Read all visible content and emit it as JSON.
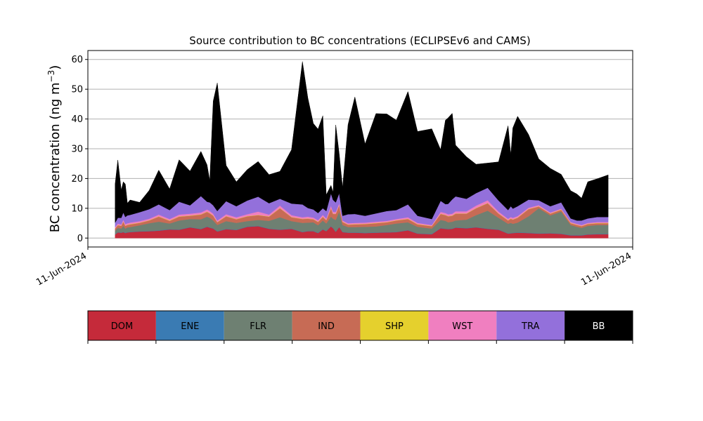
{
  "chart_data": {
    "type": "area",
    "title": "Source contribution to BC concentrations (ECLIPSEv6 and CAMS)",
    "ylabel_main": "BC concentration (ng m",
    "ylabel_sup": "−3",
    "ylabel_close": ")",
    "xlabel": "",
    "ylim": [
      -3,
      63
    ],
    "yticks": [
      0,
      10,
      20,
      30,
      40,
      50,
      60
    ],
    "x_tick_labels": [
      "11-Jun-2024",
      "11-Jun-2024"
    ],
    "xlim": [
      0,
      40
    ],
    "grid": "horizontal",
    "stacking": "cumulative",
    "x": [
      2,
      2.2,
      2.45,
      2.6,
      2.75,
      2.9,
      3.1,
      3.8,
      4.5,
      5.2,
      6,
      6.7,
      7.5,
      8.3,
      8.75,
      8.95,
      9.2,
      9.5,
      10.15,
      10.9,
      11.7,
      12.5,
      13.3,
      14.1,
      14.95,
      15.75,
      16.15,
      16.55,
      16.9,
      17.25,
      17.5,
      17.85,
      18.0,
      18.2,
      18.45,
      18.7,
      19.1,
      19.6,
      20.35,
      21.15,
      21.95,
      22.65,
      23.5,
      24.2,
      25.25,
      25.9,
      26.25,
      26.45,
      26.75,
      27.0,
      27.8,
      28.5,
      29.35,
      30.15,
      30.85,
      31.05,
      31.2,
      31.55,
      32.35,
      33.1,
      33.95,
      34.75,
      35.45,
      35.9,
      36.25,
      36.7,
      37.4,
      38.2
    ],
    "series": [
      {
        "name": "DOM",
        "color": "#c52a3a",
        "values": [
          1.2,
          1.9,
          1.8,
          2.0,
          1.7,
          1.9,
          2.0,
          2.2,
          2.3,
          2.5,
          2.9,
          2.8,
          3.6,
          3.0,
          3.8,
          3.5,
          3.2,
          2.2,
          3.0,
          2.7,
          3.8,
          4.0,
          3.1,
          2.8,
          3.1,
          2.0,
          2.3,
          2.3,
          1.7,
          2.9,
          2.3,
          3.9,
          3.3,
          2.1,
          3.7,
          2.0,
          1.8,
          1.8,
          1.7,
          1.8,
          1.9,
          2.0,
          2.6,
          1.5,
          1.3,
          3.3,
          3.1,
          3.0,
          3.1,
          3.5,
          3.3,
          3.6,
          3.1,
          2.8,
          1.5,
          1.6,
          1.7,
          1.8,
          1.7,
          1.5,
          1.6,
          1.4,
          0.9,
          0.9,
          0.9,
          1.2,
          1.3,
          1.3
        ]
      },
      {
        "name": "ENE",
        "color": "#3a7bb3",
        "values": [
          0.1,
          0.1,
          0.1,
          0.1,
          0.1,
          0.1,
          0.1,
          0.1,
          0.1,
          0.1,
          0.1,
          0.1,
          0.1,
          0.1,
          0.1,
          0.1,
          0.1,
          0.1,
          0.1,
          0.1,
          0.1,
          0.1,
          0.1,
          0.1,
          0.1,
          0.1,
          0.1,
          0.1,
          0.1,
          0.1,
          0.1,
          0.1,
          0.1,
          0.1,
          0.1,
          0.1,
          0.1,
          0.1,
          0.1,
          0.1,
          0.1,
          0.1,
          0.1,
          0.1,
          0.1,
          0.1,
          0.1,
          0.1,
          0.1,
          0.1,
          0.1,
          0.1,
          0.1,
          0.1,
          0.1,
          0.1,
          0.1,
          0.1,
          0.1,
          0.1,
          0.1,
          0.1,
          0.1,
          0.1,
          0.1,
          0.1,
          0.1,
          0.1
        ]
      },
      {
        "name": "FLR",
        "color": "#6e8072",
        "values": [
          1.2,
          1.4,
          1.3,
          2.0,
          1.4,
          1.6,
          1.6,
          2.0,
          2.6,
          2.9,
          1.9,
          3.0,
          2.7,
          3.2,
          3.3,
          3.2,
          2.6,
          2.1,
          2.6,
          2.3,
          1.8,
          2.0,
          2.6,
          4.1,
          2.5,
          3.0,
          2.8,
          2.9,
          2.5,
          2.9,
          2.5,
          3.2,
          3.1,
          3.9,
          5.2,
          2.3,
          1.8,
          1.8,
          2.0,
          2.0,
          2.4,
          2.8,
          2.6,
          2.2,
          1.8,
          2.7,
          2.6,
          2.2,
          2.3,
          2.3,
          2.8,
          4.0,
          6.0,
          3.9,
          3.2,
          3.4,
          3.0,
          3.3,
          5.5,
          8.4,
          5.9,
          7.4,
          3.4,
          2.8,
          2.4,
          2.8,
          3.0,
          3.0
        ]
      },
      {
        "name": "IND",
        "color": "#c76b55",
        "values": [
          0.7,
          0.9,
          0.9,
          1.4,
          0.9,
          0.8,
          0.9,
          0.8,
          0.9,
          1.7,
          0.9,
          1.3,
          1.1,
          1.6,
          1.6,
          1.5,
          1.6,
          0.9,
          1.6,
          1.2,
          1.6,
          1.6,
          1.4,
          3.0,
          1.3,
          1.3,
          1.3,
          1.0,
          1.1,
          1.2,
          1.1,
          2.8,
          1.6,
          2.0,
          2.0,
          1.0,
          0.8,
          0.9,
          0.9,
          1.1,
          0.9,
          1.0,
          1.1,
          0.8,
          0.8,
          2.0,
          1.9,
          2.0,
          2.0,
          2.3,
          2.0,
          2.3,
          2.5,
          1.4,
          1.1,
          1.4,
          1.4,
          1.6,
          2.4,
          0.6,
          0.6,
          0.6,
          0.6,
          0.6,
          0.6,
          0.6,
          0.6,
          0.6
        ]
      },
      {
        "name": "SHP",
        "color": "#e5d02d",
        "values": [
          0.1,
          0.1,
          0.1,
          0.1,
          0.1,
          0.1,
          0.1,
          0.1,
          0.1,
          0.1,
          0.1,
          0.1,
          0.1,
          0.1,
          0.1,
          0.1,
          0.1,
          0.1,
          0.1,
          0.1,
          0.1,
          0.1,
          0.1,
          0.1,
          0.1,
          0.1,
          0.1,
          0.1,
          0.1,
          0.1,
          0.1,
          0.1,
          0.1,
          0.1,
          0.1,
          0.1,
          0.1,
          0.1,
          0.1,
          0.1,
          0.1,
          0.1,
          0.1,
          0.1,
          0.1,
          0.1,
          0.1,
          0.1,
          0.1,
          0.1,
          0.1,
          0.1,
          0.1,
          0.1,
          0.1,
          0.1,
          0.1,
          0.1,
          0.1,
          0.1,
          0.1,
          0.1,
          0.1,
          0.1,
          0.1,
          0.1,
          0.1,
          0.1
        ]
      },
      {
        "name": "WST",
        "color": "#f07fc0",
        "values": [
          0.4,
          0.5,
          0.4,
          0.6,
          0.5,
          0.5,
          0.5,
          0.5,
          0.5,
          0.6,
          0.5,
          0.6,
          0.6,
          0.6,
          0.7,
          0.7,
          0.6,
          0.5,
          0.6,
          0.6,
          0.6,
          1.1,
          0.6,
          0.8,
          0.6,
          0.5,
          0.6,
          0.5,
          0.5,
          0.6,
          0.5,
          0.8,
          0.6,
          0.6,
          0.6,
          0.4,
          0.4,
          0.4,
          0.4,
          0.4,
          0.4,
          0.4,
          0.5,
          0.4,
          0.3,
          0.6,
          0.6,
          0.6,
          0.6,
          0.7,
          0.7,
          0.8,
          0.9,
          0.6,
          0.5,
          0.5,
          0.5,
          0.5,
          0.4,
          0.4,
          0.3,
          0.3,
          0.3,
          0.3,
          0.3,
          0.3,
          0.3,
          0.3
        ]
      },
      {
        "name": "TRA",
        "color": "#9370db",
        "values": [
          1.5,
          1.9,
          2.2,
          2.4,
          2.4,
          2.6,
          2.6,
          3.0,
          3.2,
          3.4,
          3.0,
          4.3,
          2.8,
          5.5,
          2.6,
          2.9,
          2.8,
          3.2,
          4.4,
          3.7,
          4.6,
          5.0,
          3.8,
          2.3,
          3.9,
          4.3,
          2.9,
          2.7,
          2.4,
          2.2,
          2.5,
          4.1,
          4.0,
          3.2,
          3.4,
          1.6,
          3.0,
          3.0,
          2.3,
          2.8,
          3.3,
          3.0,
          4.3,
          2.4,
          2.0,
          3.7,
          3.0,
          3.5,
          4.8,
          5.0,
          4.2,
          4.2,
          4.2,
          3.7,
          2.9,
          3.6,
          3.1,
          3.3,
          2.7,
          1.6,
          2.1,
          2.1,
          1.2,
          1.1,
          1.5,
          1.5,
          1.7,
          1.7
        ]
      },
      {
        "name": "BB",
        "color": "#000000",
        "values": [
          13.0,
          19.4,
          9.3,
          10.3,
          11.0,
          4.1,
          5.0,
          3.3,
          6.3,
          11.5,
          7.1,
          14.1,
          11.5,
          15.0,
          12.4,
          7.3,
          35.0,
          43.0,
          12.0,
          8.2,
          10.4,
          11.8,
          9.6,
          9.2,
          18.1,
          48.0,
          37.0,
          28.9,
          28.2,
          31.1,
          5.4,
          2.7,
          2.5,
          26.0,
          13.2,
          9.5,
          30.1,
          39.3,
          24.1,
          33.5,
          32.6,
          30.2,
          37.9,
          28.3,
          30.3,
          17.2,
          28.2,
          28.9,
          28.9,
          17.2,
          14.1,
          9.7,
          8.3,
          13.0,
          28.3,
          17.2,
          27.1,
          30.2,
          21.9,
          13.9,
          12.7,
          9.4,
          9.3,
          8.9,
          7.5,
          12.3,
          12.8,
          14.1
        ]
      }
    ],
    "color_legend": {
      "labels": [
        "DOM",
        "ENE",
        "FLR",
        "IND",
        "SHP",
        "WST",
        "TRA",
        "BB"
      ],
      "colors": [
        "#c52a3a",
        "#3a7bb3",
        "#6e8072",
        "#c76b55",
        "#e5d02d",
        "#f07fc0",
        "#9370db",
        "#000000"
      ],
      "text_colors": [
        "#000000",
        "#000000",
        "#000000",
        "#000000",
        "#000000",
        "#000000",
        "#000000",
        "#ffffff"
      ]
    }
  }
}
